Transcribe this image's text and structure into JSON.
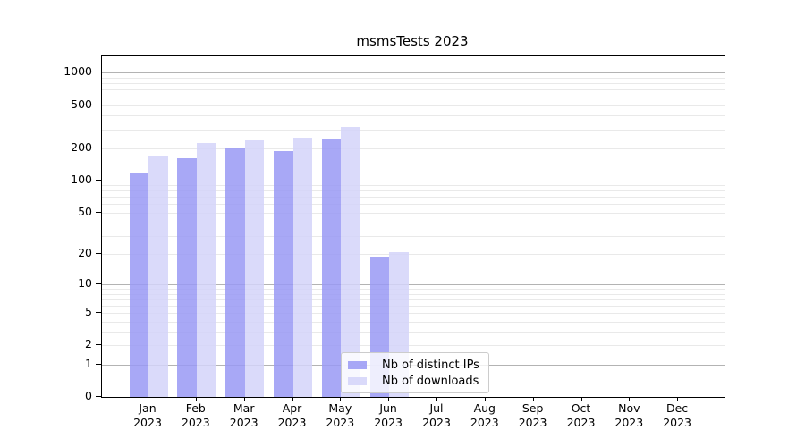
{
  "chart_data": {
    "type": "bar",
    "title": "msmsTests 2023",
    "categories": [
      "Jan",
      "Feb",
      "Mar",
      "Apr",
      "May",
      "Jun",
      "Jul",
      "Aug",
      "Sep",
      "Oct",
      "Nov",
      "Dec"
    ],
    "category_year": "2023",
    "series": [
      {
        "name": "Nb of distinct IPs",
        "color": "#9999f5",
        "alpha": 0.85,
        "values": [
          118,
          160,
          204,
          187,
          240,
          19,
          0,
          0,
          0,
          0,
          0,
          0
        ]
      },
      {
        "name": "Nb of downloads",
        "color": "#d4d4f9",
        "alpha": 0.85,
        "values": [
          168,
          224,
          236,
          252,
          316,
          21,
          0,
          0,
          0,
          0,
          0,
          0
        ]
      }
    ],
    "xlabel": "",
    "ylabel": "",
    "y_scale": "log1p",
    "ylim": [
      0,
      1420
    ],
    "y_ticks": [
      1000,
      500,
      200,
      100,
      50,
      20,
      10,
      5,
      2,
      1,
      0
    ],
    "grid": "on",
    "grid_major_color": "#b3b3b3",
    "grid_minor_color": "#e9e9e9",
    "legend_position": "lower center",
    "axis_color": "#000000",
    "background_color": "#ffffff"
  }
}
